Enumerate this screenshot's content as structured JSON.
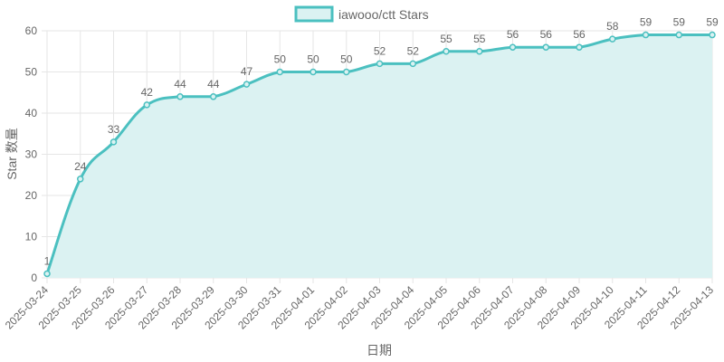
{
  "chart_data": {
    "type": "area",
    "categories": [
      "2025-03-24",
      "2025-03-25",
      "2025-03-26",
      "2025-03-27",
      "2025-03-28",
      "2025-03-29",
      "2025-03-30",
      "2025-03-31",
      "2025-04-01",
      "2025-04-02",
      "2025-04-03",
      "2025-04-04",
      "2025-04-05",
      "2025-04-06",
      "2025-04-07",
      "2025-04-08",
      "2025-04-09",
      "2025-04-10",
      "2025-04-11",
      "2025-04-12",
      "2025-04-13"
    ],
    "series": [
      {
        "name": "iawooo/ctt Stars",
        "values": [
          1,
          24,
          33,
          42,
          44,
          44,
          47,
          50,
          50,
          50,
          52,
          52,
          55,
          55,
          56,
          56,
          56,
          58,
          59,
          59,
          59
        ]
      }
    ],
    "xlabel": "日期",
    "ylabel": "Star 数量",
    "ylim": [
      0,
      60
    ],
    "yticks": [
      0,
      10,
      20,
      30,
      40,
      50,
      60
    ],
    "grid": true,
    "legend_position": "top-center",
    "data_labels": true,
    "colors": {
      "line": "#4bc0c0",
      "fill": "#dbf2f2",
      "grid": "#e6e6e6",
      "text": "#666666"
    }
  }
}
